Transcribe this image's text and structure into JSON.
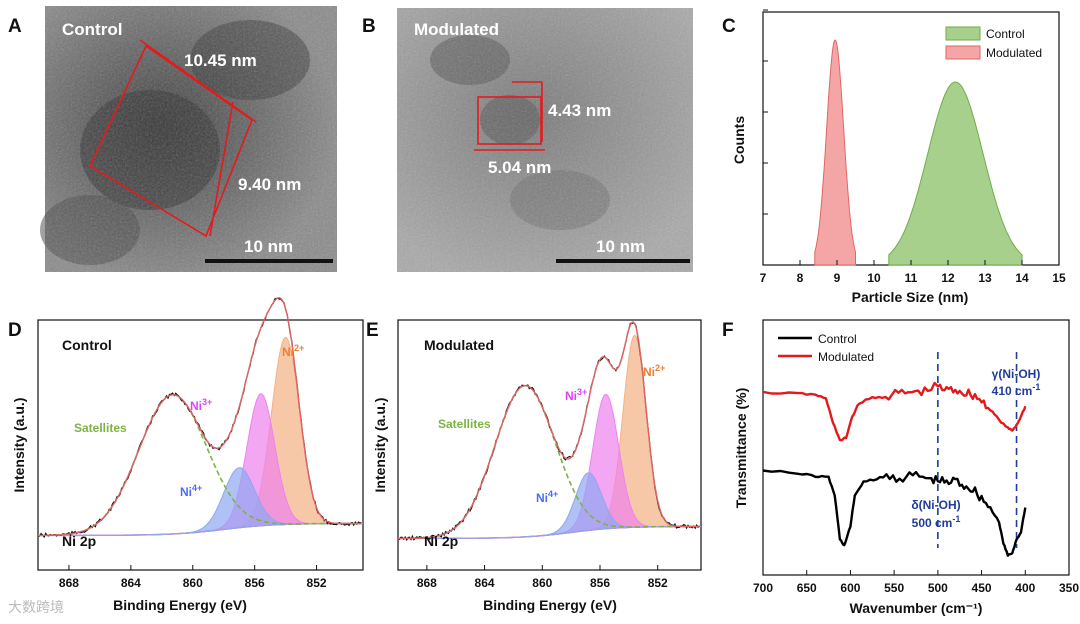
{
  "panels": {
    "A": {
      "label": "A",
      "title": "Control",
      "dim1": "10.45 nm",
      "dim2": "9.40 nm",
      "scale_bar": "10 nm"
    },
    "B": {
      "label": "B",
      "title": "Modulated",
      "dim1": "4.43 nm",
      "dim2": "5.04 nm",
      "scale_bar": "10 nm"
    },
    "C": {
      "label": "C"
    },
    "D": {
      "label": "D",
      "title": "Control",
      "core": "Ni 2p"
    },
    "E": {
      "label": "E",
      "title": "Modulated",
      "core": "Ni 2p"
    },
    "F": {
      "label": "F"
    }
  },
  "xps_peaks": {
    "satellites": "Satellites",
    "ni2": {
      "base": "Ni",
      "sup": "2+"
    },
    "ni3": {
      "base": "Ni",
      "sup": "3+"
    },
    "ni4": {
      "base": "Ni",
      "sup": "4+"
    }
  },
  "ir_annotations": {
    "peak1": {
      "line1": "γ(Ni-OH)",
      "line2": "410 cm",
      "sup": "-1"
    },
    "peak2": {
      "line1": "δ(Ni-OH)",
      "line2": "500 cm",
      "sup": "-1"
    }
  },
  "watermark": "大数跨境",
  "colors": {
    "control_fill": "#a8d08d",
    "control_edge": "#70ad47",
    "modulated_fill": "#f4a6a6",
    "modulated_edge": "#e06666",
    "ni2": "#f4b183",
    "ni3": "#ee82ee",
    "ni4": "#8fa6f2",
    "satellite": "#7cb342",
    "background": "#9b59b6",
    "ir_control": "#000000",
    "ir_modulated": "#e31a1c",
    "ref_line": "#1f3c99"
  },
  "chart_data": [
    {
      "panel": "C",
      "type": "area",
      "xlabel": "Particle Size (nm)",
      "ylabel": "Counts",
      "xlim": [
        7,
        15
      ],
      "xticks": [
        "7",
        "8",
        "9",
        "10",
        "11",
        "12",
        "13",
        "14",
        "15"
      ],
      "legend": "top-right",
      "series": [
        {
          "name": "Control",
          "center": 12.2,
          "sigma": 0.75,
          "range": [
            10.4,
            14.0
          ]
        },
        {
          "name": "Modulated",
          "center": 8.95,
          "sigma": 0.23,
          "range": [
            8.4,
            9.5
          ]
        }
      ]
    },
    {
      "panel": "D",
      "type": "line",
      "xlabel": "Binding Energy (eV)",
      "ylabel": "Intensity (a.u.)",
      "xlim": [
        870,
        849
      ],
      "xticks": [
        "868",
        "864",
        "860",
        "856",
        "852"
      ],
      "components": [
        {
          "name": "Ni2+",
          "center": 854.0,
          "height": 0.78,
          "width": 0.9
        },
        {
          "name": "Ni3+",
          "center": 855.6,
          "height": 0.55,
          "width": 0.9
        },
        {
          "name": "Ni4+",
          "center": 857.0,
          "height": 0.25,
          "width": 1.0
        },
        {
          "name": "Satellites",
          "center": 861.3,
          "height": 0.58,
          "width": 2.2
        }
      ]
    },
    {
      "panel": "E",
      "type": "line",
      "xlabel": "Binding Energy (eV)",
      "ylabel": "Intensity (a.u.)",
      "xlim": [
        870,
        849
      ],
      "xticks": [
        "868",
        "864",
        "860",
        "856",
        "852"
      ],
      "components": [
        {
          "name": "Ni2+",
          "center": 853.6,
          "height": 0.8,
          "width": 0.8
        },
        {
          "name": "Ni3+",
          "center": 855.6,
          "height": 0.56,
          "width": 0.9
        },
        {
          "name": "Ni4+",
          "center": 856.8,
          "height": 0.24,
          "width": 0.9
        },
        {
          "name": "Satellites",
          "center": 861.2,
          "height": 0.63,
          "width": 2.1
        }
      ]
    },
    {
      "panel": "F",
      "type": "line",
      "xlabel": "Wavenumber (cm⁻¹)",
      "ylabel": "Transmittance (%)",
      "xlim": [
        700,
        350
      ],
      "xticks": [
        "700",
        "650",
        "600",
        "550",
        "500",
        "450",
        "400",
        "350"
      ],
      "reference_lines": [
        500,
        410
      ],
      "series": [
        {
          "name": "Control",
          "points": [
            [
              700,
              0.3
            ],
            [
              660,
              0.33
            ],
            [
              640,
              0.35
            ],
            [
              625,
              0.36
            ],
            [
              618,
              0.5
            ],
            [
              612,
              0.85
            ],
            [
              607,
              0.9
            ],
            [
              600,
              0.75
            ],
            [
              595,
              0.5
            ],
            [
              585,
              0.4
            ],
            [
              570,
              0.37
            ],
            [
              555,
              0.35
            ],
            [
              540,
              0.36
            ],
            [
              525,
              0.34
            ],
            [
              510,
              0.37
            ],
            [
              500,
              0.38
            ],
            [
              490,
              0.4
            ],
            [
              480,
              0.38
            ],
            [
              470,
              0.42
            ],
            [
              460,
              0.45
            ],
            [
              450,
              0.52
            ],
            [
              440,
              0.6
            ],
            [
              430,
              0.72
            ],
            [
              425,
              0.88
            ],
            [
              420,
              0.98
            ],
            [
              415,
              0.96
            ],
            [
              410,
              0.85
            ],
            [
              405,
              0.8
            ],
            [
              400,
              0.6
            ]
          ]
        },
        {
          "name": "Modulated",
          "points": [
            [
              700,
              0.12
            ],
            [
              660,
              0.13
            ],
            [
              640,
              0.14
            ],
            [
              628,
              0.18
            ],
            [
              620,
              0.4
            ],
            [
              612,
              0.58
            ],
            [
              605,
              0.55
            ],
            [
              598,
              0.35
            ],
            [
              590,
              0.22
            ],
            [
              575,
              0.17
            ],
            [
              560,
              0.16
            ],
            [
              545,
              0.13
            ],
            [
              530,
              0.12
            ],
            [
              515,
              0.11
            ],
            [
              500,
              0.06
            ],
            [
              490,
              0.1
            ],
            [
              480,
              0.09
            ],
            [
              470,
              0.12
            ],
            [
              460,
              0.14
            ],
            [
              450,
              0.2
            ],
            [
              440,
              0.28
            ],
            [
              430,
              0.38
            ],
            [
              420,
              0.46
            ],
            [
              415,
              0.48
            ],
            [
              410,
              0.43
            ],
            [
              405,
              0.35
            ],
            [
              400,
              0.25
            ]
          ]
        }
      ]
    }
  ]
}
